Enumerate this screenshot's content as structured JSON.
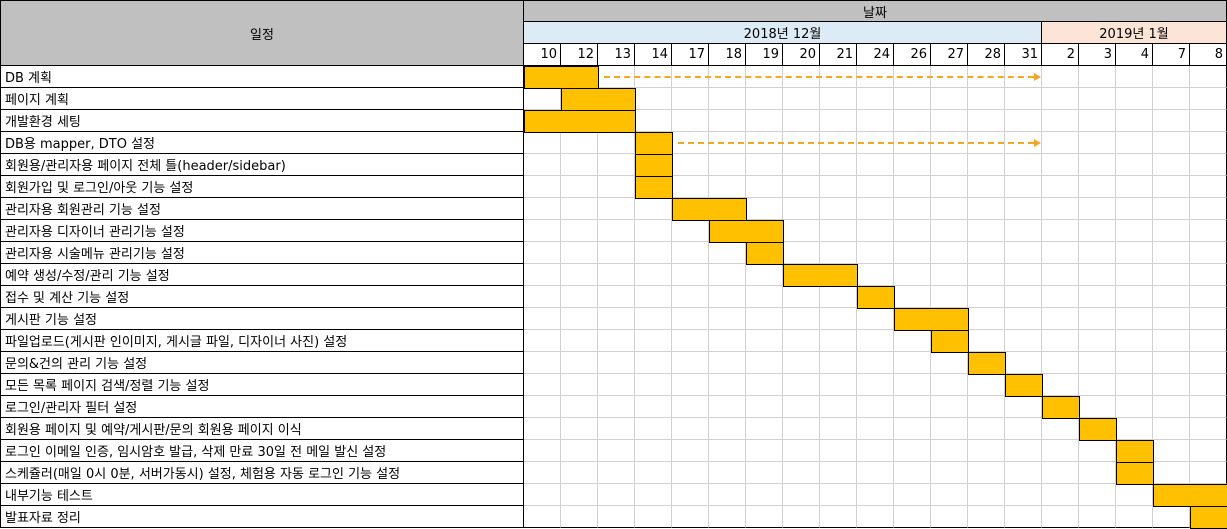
{
  "header": {
    "task_col": "일정",
    "date_group": "날짜",
    "month_dec": "2018년 12월",
    "month_jan": "2019년 1월"
  },
  "days": [
    "10",
    "12",
    "13",
    "14",
    "17",
    "18",
    "19",
    "20",
    "21",
    "24",
    "26",
    "27",
    "28",
    "31",
    "2",
    "3",
    "4",
    "7",
    "8"
  ],
  "tasks": [
    {
      "name": "DB 계획",
      "start": 0,
      "end": 1,
      "arrow_to": 13
    },
    {
      "name": "페이지 계획",
      "start": 1,
      "end": 2
    },
    {
      "name": "개발환경 세팅",
      "start": 0,
      "end": 2
    },
    {
      "name": "DB용 mapper, DTO 설정",
      "start": 3,
      "end": 3,
      "arrow_to": 13
    },
    {
      "name": "회원용/관리자용 페이지 전체 틀(header/sidebar)",
      "start": 3,
      "end": 3
    },
    {
      "name": "회원가입 및 로그인/아웃 기능 설정",
      "start": 3,
      "end": 3
    },
    {
      "name": "관리자용 회원관리 기능 설정",
      "start": 4,
      "end": 5
    },
    {
      "name": "관리자용 디자이너 관리기능 설정",
      "start": 5,
      "end": 6
    },
    {
      "name": "관리자용 시술메뉴 관리기능 설정",
      "start": 6,
      "end": 6
    },
    {
      "name": "예약 생성/수정/관리 기능 설정",
      "start": 7,
      "end": 8
    },
    {
      "name": "접수 및 계산 기능 설정",
      "start": 9,
      "end": 9
    },
    {
      "name": "게시판 기능 설정",
      "start": 10,
      "end": 11
    },
    {
      "name": "파일업로드(게시판 인이미지, 게시글 파일, 디자이너 사진) 설정",
      "start": 11,
      "end": 11
    },
    {
      "name": "문의&건의 관리 기능 설정",
      "start": 12,
      "end": 12
    },
    {
      "name": "모든 목록 페이지 검색/정렬 기능 설정",
      "start": 13,
      "end": 13
    },
    {
      "name": "로그인/관리자 필터 설정",
      "start": 14,
      "end": 14
    },
    {
      "name": "회원용 페이지 및 예약/게시판/문의 회원용 페이지 이식",
      "start": 15,
      "end": 15
    },
    {
      "name": "로그인 이메일 인증, 임시암호 발급, 삭제 만료 30일 전 메일 발신 설정",
      "start": 16,
      "end": 16
    },
    {
      "name": "스케쥴러(매일 0시 0분, 서버가동시) 설정, 체험용 자동 로그인 기능 설정",
      "start": 16,
      "end": 16
    },
    {
      "name": "내부기능 테스트",
      "start": 17,
      "end": 18
    },
    {
      "name": "발표자료 정리",
      "start": 18,
      "end": 18
    }
  ],
  "colors": {
    "bar": "#ffc000",
    "arrow": "#f5a623",
    "header_gray": "#c0c0c0",
    "dec_bg": "#ddebf7",
    "jan_bg": "#fce4d6"
  }
}
